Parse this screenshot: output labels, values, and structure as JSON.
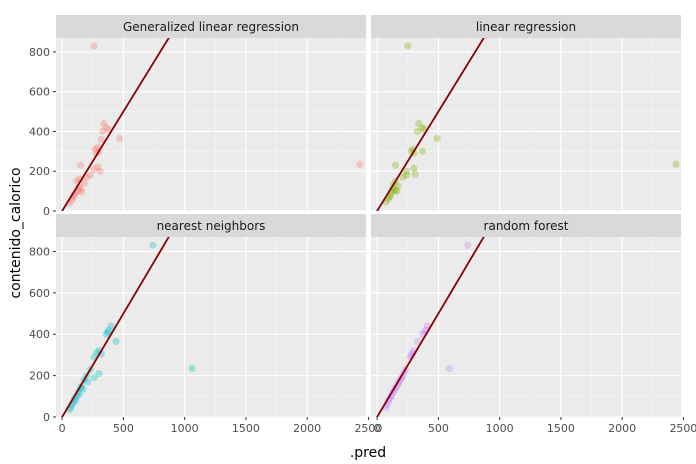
{
  "chart_data": {
    "type": "scatter",
    "facets": [
      "Generalized linear regression",
      "linear regression",
      "nearest neighbors",
      "random forest"
    ],
    "xlabel": ".pred",
    "ylabel": "contenido_calorico",
    "xlim": [
      -50,
      2480
    ],
    "ylim": [
      0,
      870
    ],
    "x_ticks": [
      "0",
      "500",
      "1000",
      "1500",
      "2000",
      "2500"
    ],
    "y_ticks": [
      "0",
      "200",
      "400",
      "600",
      "800"
    ],
    "reference_line": {
      "slope": 1,
      "intercept": 0
    },
    "colors": {
      "Generalized linear regression": "#F8766D",
      "linear regression": "#7CAE00",
      "nearest neighbors": "#00BFC4",
      "random forest": "#C77CFF",
      "line": "#8B0000"
    },
    "series": [
      {
        "name": "Generalized linear regression",
        "points": [
          [
            260,
            830
          ],
          [
            2430,
            235
          ],
          [
            340,
            440
          ],
          [
            360,
            420
          ],
          [
            380,
            410
          ],
          [
            330,
            400
          ],
          [
            470,
            365
          ],
          [
            320,
            360
          ],
          [
            290,
            320
          ],
          [
            270,
            310
          ],
          [
            300,
            300
          ],
          [
            280,
            290
          ],
          [
            150,
            230
          ],
          [
            290,
            220
          ],
          [
            260,
            210
          ],
          [
            310,
            200
          ],
          [
            230,
            180
          ],
          [
            200,
            170
          ],
          [
            140,
            160
          ],
          [
            120,
            150
          ],
          [
            180,
            140
          ],
          [
            140,
            120
          ],
          [
            150,
            110
          ],
          [
            130,
            100
          ],
          [
            160,
            95
          ],
          [
            110,
            90
          ],
          [
            100,
            80
          ],
          [
            90,
            70
          ],
          [
            80,
            55
          ],
          [
            60,
            40
          ]
        ]
      },
      {
        "name": "linear regression",
        "points": [
          [
            250,
            830
          ],
          [
            2440,
            235
          ],
          [
            340,
            440
          ],
          [
            370,
            420
          ],
          [
            380,
            410
          ],
          [
            330,
            400
          ],
          [
            490,
            365
          ],
          [
            370,
            300
          ],
          [
            290,
            310
          ],
          [
            280,
            300
          ],
          [
            300,
            290
          ],
          [
            150,
            230
          ],
          [
            300,
            215
          ],
          [
            240,
            200
          ],
          [
            310,
            185
          ],
          [
            240,
            180
          ],
          [
            210,
            170
          ],
          [
            150,
            150
          ],
          [
            130,
            130
          ],
          [
            170,
            125
          ],
          [
            130,
            110
          ],
          [
            150,
            105
          ],
          [
            120,
            95
          ],
          [
            160,
            100
          ],
          [
            110,
            80
          ],
          [
            100,
            70
          ],
          [
            90,
            60
          ],
          [
            70,
            45
          ]
        ]
      },
      {
        "name": "nearest neighbors",
        "points": [
          [
            740,
            830
          ],
          [
            1060,
            235
          ],
          [
            400,
            440
          ],
          [
            380,
            420
          ],
          [
            370,
            410
          ],
          [
            360,
            400
          ],
          [
            440,
            365
          ],
          [
            300,
            320
          ],
          [
            280,
            310
          ],
          [
            320,
            305
          ],
          [
            260,
            290
          ],
          [
            230,
            230
          ],
          [
            300,
            210
          ],
          [
            200,
            200
          ],
          [
            260,
            190
          ],
          [
            180,
            180
          ],
          [
            210,
            170
          ],
          [
            160,
            150
          ],
          [
            150,
            140
          ],
          [
            170,
            135
          ],
          [
            130,
            120
          ],
          [
            140,
            110
          ],
          [
            120,
            100
          ],
          [
            100,
            90
          ],
          [
            110,
            80
          ],
          [
            90,
            70
          ],
          [
            80,
            60
          ],
          [
            70,
            45
          ],
          [
            60,
            35
          ]
        ]
      },
      {
        "name": "random forest",
        "points": [
          [
            740,
            830
          ],
          [
            590,
            235
          ],
          [
            410,
            440
          ],
          [
            400,
            420
          ],
          [
            390,
            410
          ],
          [
            370,
            400
          ],
          [
            330,
            365
          ],
          [
            300,
            320
          ],
          [
            290,
            310
          ],
          [
            280,
            300
          ],
          [
            270,
            290
          ],
          [
            230,
            230
          ],
          [
            220,
            215
          ],
          [
            210,
            200
          ],
          [
            200,
            190
          ],
          [
            190,
            180
          ],
          [
            180,
            170
          ],
          [
            170,
            160
          ],
          [
            160,
            150
          ],
          [
            150,
            140
          ],
          [
            140,
            130
          ],
          [
            130,
            120
          ],
          [
            120,
            105
          ],
          [
            110,
            95
          ],
          [
            100,
            85
          ],
          [
            90,
            75
          ],
          [
            80,
            60
          ],
          [
            70,
            45
          ]
        ]
      }
    ]
  }
}
